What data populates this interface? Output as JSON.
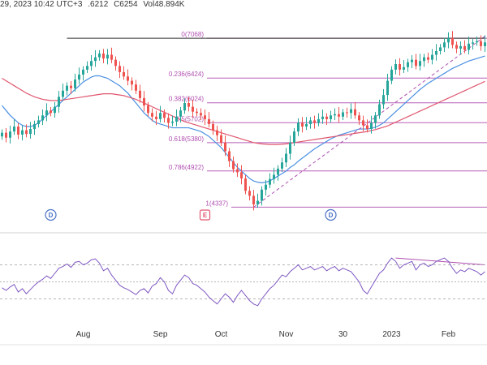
{
  "header": {
    "date_fragment": "29, 2023 10:42 UTC+3",
    "low_fragment": ".6212",
    "close_fragment": "C6254",
    "volume_label": "Vol48.894K"
  },
  "colors": {
    "up": "#26a69a",
    "down": "#ef5350",
    "ma_fast": "#4a90e2",
    "ma_slow": "#e0566f",
    "fib": "#b04fb0",
    "rsi": "#7e57c2",
    "trend": "#b04fb0"
  },
  "chart_data": {
    "type": "line",
    "subtype": "candlestick-with-fibonacci-and-rsi",
    "x_ticks": [
      "Aug",
      "Sep",
      "Oct",
      "Nov",
      "30",
      "2023",
      "Feb"
    ],
    "event_markers": [
      {
        "label": "D",
        "kind": "dividend"
      },
      {
        "label": "E",
        "kind": "earnings"
      },
      {
        "label": "D",
        "kind": "dividend"
      }
    ],
    "fibonacci_levels": [
      {
        "label": "0(7068)",
        "ratio": 0,
        "price": 7068
      },
      {
        "label": "0.236(6424)",
        "ratio": 0.236,
        "price": 6424
      },
      {
        "label": "0.382(6024)",
        "ratio": 0.382,
        "price": 6024
      },
      {
        "label": "0.5(5702)",
        "ratio": 0.5,
        "price": 5702
      },
      {
        "label": "0.618(5380)",
        "ratio": 0.618,
        "price": 5380
      },
      {
        "label": "0.786(4922)",
        "ratio": 0.786,
        "price": 4922
      },
      {
        "label": "1(4337)",
        "ratio": 1,
        "price": 4337
      }
    ],
    "price_range": [
      4250,
      7450
    ],
    "close_series": [
      5540,
      5460,
      5560,
      5640,
      5510,
      5580,
      5520,
      5600,
      5680,
      5740,
      5820,
      5900,
      5860,
      5960,
      6120,
      6220,
      6300,
      6260,
      6400,
      6480,
      6560,
      6620,
      6700,
      6760,
      6820,
      6740,
      6800,
      6720,
      6620,
      6520,
      6450,
      6380,
      6320,
      6220,
      6100,
      5980,
      5860,
      5800,
      5760,
      5860,
      5780,
      5700,
      5720,
      5800,
      5900,
      6020,
      5960,
      5880,
      5860,
      5820,
      5760,
      5680,
      5580,
      5500,
      5380,
      5240,
      5080,
      4950,
      4900,
      4800,
      4600,
      4520,
      4380,
      4440,
      4620,
      4700,
      4790,
      4860,
      4960,
      5060,
      5200,
      5380,
      5560,
      5700,
      5640,
      5680,
      5740,
      5700,
      5760,
      5800,
      5760,
      5820,
      5840,
      5800,
      5870,
      5860,
      5920,
      5820,
      5740,
      5660,
      5600,
      5700,
      5820,
      6000,
      6150,
      6380,
      6560,
      6650,
      6560,
      6600,
      6680,
      6720,
      6620,
      6700,
      6760,
      6720,
      6800,
      6860,
      6920,
      7000,
      7070,
      6960,
      6900,
      6940,
      6880,
      6980,
      7000,
      7020,
      6940,
      7000
    ],
    "ma_fast_series": [
      5980,
      5900,
      5820,
      5760,
      5700,
      5660,
      5640,
      5640,
      5660,
      5700,
      5760,
      5820,
      5880,
      5940,
      6000,
      6060,
      6120,
      6180,
      6240,
      6300,
      6360,
      6400,
      6440,
      6460,
      6460,
      6440,
      6420,
      6380,
      6340,
      6300,
      6240,
      6180,
      6100,
      6020,
      5940,
      5860,
      5800,
      5740,
      5700,
      5680,
      5660,
      5640,
      5620,
      5620,
      5620,
      5620,
      5620,
      5600,
      5580,
      5560,
      5520,
      5480,
      5420,
      5360,
      5300,
      5220,
      5140,
      5060,
      4980,
      4920,
      4860,
      4800,
      4760,
      4740,
      4730,
      4740,
      4760,
      4800,
      4840,
      4880,
      4920,
      4980,
      5020,
      5080,
      5130,
      5180,
      5230,
      5280,
      5320,
      5360,
      5400,
      5440,
      5470,
      5500,
      5520,
      5540,
      5560,
      5580,
      5600,
      5600,
      5600,
      5610,
      5630,
      5660,
      5700,
      5760,
      5820,
      5880,
      5940,
      6000,
      6060,
      6120,
      6180,
      6240,
      6290,
      6340,
      6380,
      6420,
      6460,
      6500,
      6540,
      6580,
      6610,
      6640,
      6670,
      6700,
      6720,
      6740,
      6760,
      6780
    ],
    "ma_slow_series": [
      6420,
      6380,
      6340,
      6300,
      6260,
      6220,
      6180,
      6150,
      6120,
      6100,
      6080,
      6070,
      6060,
      6060,
      6060,
      6070,
      6080,
      6090,
      6100,
      6110,
      6120,
      6130,
      6140,
      6150,
      6160,
      6170,
      6170,
      6170,
      6160,
      6150,
      6140,
      6120,
      6100,
      6080,
      6050,
      6020,
      5990,
      5960,
      5930,
      5900,
      5870,
      5840,
      5810,
      5780,
      5750,
      5720,
      5700,
      5680,
      5660,
      5640,
      5620,
      5600,
      5580,
      5560,
      5540,
      5520,
      5500,
      5480,
      5460,
      5440,
      5420,
      5400,
      5380,
      5370,
      5360,
      5355,
      5350,
      5350,
      5350,
      5355,
      5360,
      5370,
      5380,
      5390,
      5400,
      5410,
      5420,
      5430,
      5440,
      5450,
      5460,
      5470,
      5480,
      5490,
      5500,
      5510,
      5520,
      5530,
      5540,
      5550,
      5560,
      5575,
      5590,
      5610,
      5630,
      5650,
      5680,
      5710,
      5740,
      5770,
      5800,
      5830,
      5860,
      5890,
      5920,
      5950,
      5980,
      6010,
      6040,
      6070,
      6100,
      6130,
      6160,
      6190,
      6220,
      6250,
      6280,
      6310,
      6340,
      6370
    ],
    "rsi_range": [
      0,
      100
    ],
    "rsi_levels": [
      70,
      50,
      30
    ],
    "rsi_series": [
      43,
      40,
      44,
      47,
      38,
      42,
      36,
      41,
      46,
      50,
      53,
      57,
      54,
      60,
      66,
      68,
      71,
      67,
      73,
      74,
      70,
      72,
      76,
      77,
      72,
      63,
      66,
      58,
      52,
      46,
      43,
      41,
      38,
      35,
      40,
      42,
      37,
      45,
      48,
      55,
      50,
      40,
      36,
      46,
      52,
      58,
      55,
      48,
      46,
      42,
      38,
      32,
      28,
      24,
      30,
      36,
      32,
      26,
      34,
      40,
      34,
      28,
      24,
      22,
      30,
      36,
      42,
      46,
      52,
      58,
      56,
      62,
      66,
      70,
      64,
      66,
      68,
      64,
      66,
      68,
      63,
      66,
      68,
      63,
      66,
      64,
      62,
      56,
      50,
      40,
      36,
      44,
      52,
      60,
      64,
      72,
      78,
      74,
      66,
      70,
      72,
      74,
      64,
      70,
      72,
      68,
      70,
      74,
      76,
      78,
      74,
      66,
      60,
      64,
      62,
      66,
      64,
      62,
      58,
      62
    ],
    "trendlines": [
      {
        "panel": "price",
        "from": [
          62,
          4337
        ],
        "to": [
          119,
          7100
        ],
        "style": "dashed"
      },
      {
        "panel": "rsi",
        "from": [
          97,
          78
        ],
        "to": [
          119,
          70
        ],
        "style": "solid"
      },
      {
        "panel": "price",
        "from": [
          16,
          7068
        ],
        "to": [
          119,
          7068
        ],
        "style": "solid"
      }
    ],
    "title": "",
    "xlabel": "",
    "ylabel": "",
    "grid": false
  }
}
